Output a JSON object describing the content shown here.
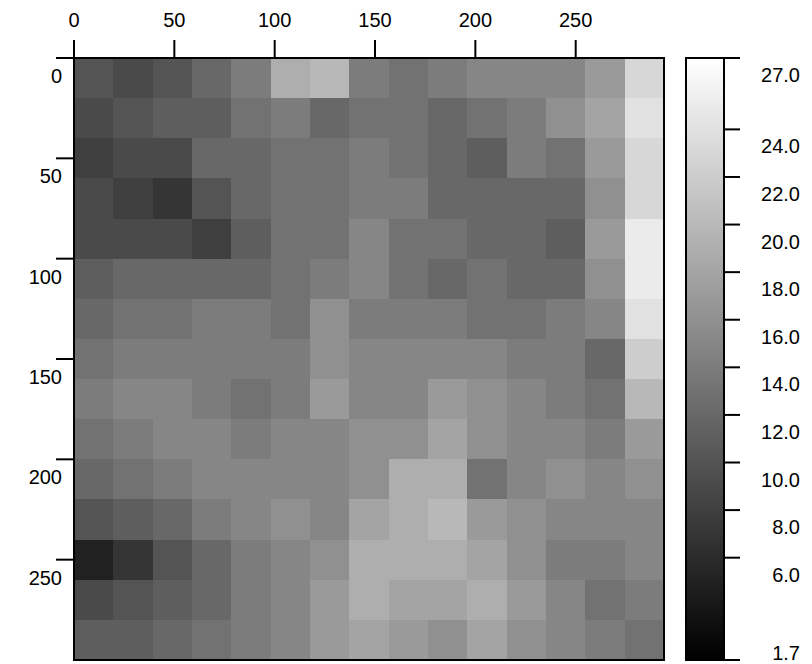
{
  "chart_data": {
    "type": "heatmap",
    "x": [
      9.8,
      29.4,
      49,
      68.6,
      88.2,
      107.8,
      127.4,
      147,
      166.6,
      186.2,
      205.8,
      225.4,
      245,
      264.6,
      284.2
    ],
    "y": [
      10,
      30,
      50,
      70,
      90,
      110,
      130,
      150,
      170,
      190,
      210,
      230,
      250,
      270,
      290
    ],
    "values": [
      [
        10,
        9,
        10,
        12,
        14,
        19,
        20,
        14,
        13,
        14,
        15,
        15,
        15,
        17,
        23
      ],
      [
        9,
        10,
        11,
        11,
        13,
        14,
        12,
        13,
        13,
        12,
        13,
        14,
        16,
        18,
        24
      ],
      [
        8,
        9,
        9,
        12,
        12,
        13,
        13,
        14,
        13,
        12,
        11,
        14,
        13,
        17,
        23
      ],
      [
        9,
        8,
        7,
        10,
        12,
        13,
        13,
        14,
        14,
        12,
        12,
        12,
        12,
        16,
        23
      ],
      [
        9,
        9,
        9,
        8,
        11,
        13,
        13,
        15,
        13,
        13,
        12,
        12,
        11,
        17,
        25
      ],
      [
        11,
        12,
        12,
        12,
        12,
        13,
        14,
        15,
        13,
        12,
        13,
        12,
        12,
        16,
        25
      ],
      [
        12,
        13,
        13,
        14,
        14,
        13,
        16,
        14,
        14,
        14,
        13,
        13,
        14,
        15,
        24
      ],
      [
        13,
        14,
        14,
        14,
        14,
        14,
        16,
        15,
        15,
        15,
        15,
        14,
        14,
        12,
        22
      ],
      [
        14,
        15,
        15,
        14,
        13,
        14,
        17,
        15,
        15,
        17,
        16,
        15,
        14,
        13,
        20
      ],
      [
        13,
        14,
        15,
        15,
        14,
        15,
        15,
        16,
        16,
        18,
        16,
        15,
        15,
        14,
        17
      ],
      [
        12,
        13,
        14,
        15,
        15,
        15,
        15,
        16,
        19,
        19,
        13,
        15,
        16,
        15,
        16
      ],
      [
        10,
        11,
        12,
        14,
        15,
        16,
        15,
        18,
        19,
        20,
        17,
        16,
        15,
        15,
        15
      ],
      [
        5,
        7,
        10,
        12,
        14,
        15,
        16,
        19,
        19,
        19,
        18,
        16,
        14,
        14,
        15
      ],
      [
        9,
        10,
        11,
        12,
        14,
        15,
        17,
        19,
        18,
        18,
        19,
        17,
        15,
        13,
        14
      ],
      [
        11,
        11,
        12,
        13,
        14,
        15,
        17,
        18,
        17,
        16,
        18,
        16,
        15,
        14,
        13
      ]
    ],
    "xlim": [
      0,
      294
    ],
    "ylim": [
      300,
      0
    ],
    "xticks": [
      0,
      50,
      100,
      150,
      200,
      250
    ],
    "yticks": [
      0,
      50,
      100,
      150,
      200,
      250
    ],
    "color_range": [
      1.7,
      27
    ],
    "color_ticks": [
      {
        "value": 27,
        "label": "27.0"
      },
      {
        "value": 24,
        "label": "24.0"
      },
      {
        "value": 22,
        "label": "22.0"
      },
      {
        "value": 20,
        "label": "20.0"
      },
      {
        "value": 18,
        "label": "18.0"
      },
      {
        "value": 16,
        "label": "16.0"
      },
      {
        "value": 14,
        "label": "14.0"
      },
      {
        "value": 12,
        "label": "12.0"
      },
      {
        "value": 10,
        "label": "10.0"
      },
      {
        "value": 8,
        "label": "8.0"
      },
      {
        "value": 6,
        "label": "6.0"
      },
      {
        "value": 1.7,
        "label": "1.7"
      }
    ]
  }
}
